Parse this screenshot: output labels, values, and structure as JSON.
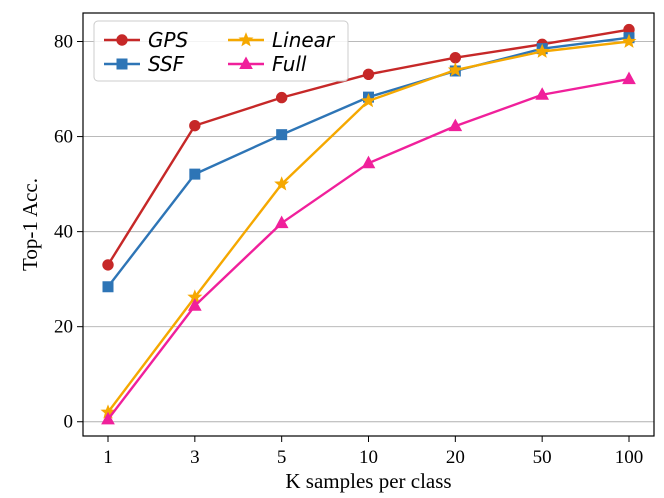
{
  "chart_data": {
    "type": "line",
    "title": "",
    "xlabel": "K samples per class",
    "ylabel": "Top-1 Acc.",
    "categories": [
      "1",
      "3",
      "5",
      "10",
      "20",
      "50",
      "100"
    ],
    "ylim": [
      -3,
      86
    ],
    "yticks": [
      0,
      20,
      40,
      60,
      80
    ],
    "grid": "horizontal",
    "legend_position": "top-left",
    "series": [
      {
        "name": "GPS",
        "color": "#c62828",
        "marker": "circle",
        "values": [
          33.0,
          62.3,
          68.2,
          73.1,
          76.6,
          79.4,
          82.5
        ]
      },
      {
        "name": "SSF",
        "color": "#2e75b6",
        "marker": "square",
        "values": [
          28.4,
          52.1,
          60.4,
          68.3,
          73.8,
          78.5,
          80.8
        ]
      },
      {
        "name": "Linear",
        "color": "#f5a800",
        "marker": "star",
        "values": [
          2.0,
          26.2,
          50.0,
          67.5,
          74.0,
          77.9,
          80.0
        ]
      },
      {
        "name": "Full",
        "color": "#f0209b",
        "marker": "triangle",
        "values": [
          0.5,
          24.4,
          41.8,
          54.4,
          62.2,
          68.8,
          72.1
        ]
      }
    ]
  }
}
